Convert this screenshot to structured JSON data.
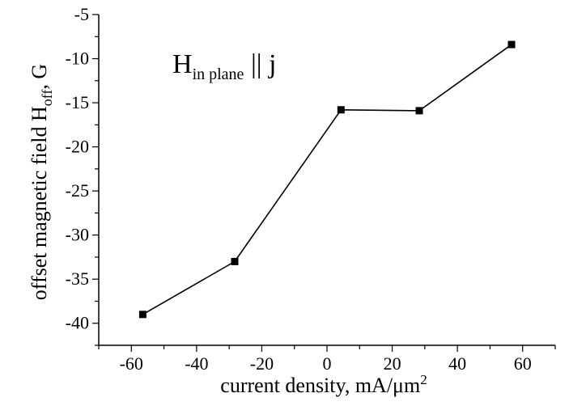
{
  "chart_data": {
    "type": "line",
    "title": "",
    "xlabel": "current density, mA/μm",
    "xlabel_superscript": "2",
    "ylabel_main": "offset magnetic field H",
    "ylabel_subscript": "off",
    "ylabel_tail": ", G",
    "xlim": [
      -70,
      70
    ],
    "ylim": [
      -42.5,
      -5
    ],
    "xticks": [
      -60,
      -40,
      -20,
      0,
      20,
      40,
      60
    ],
    "yticks": [
      -40,
      -35,
      -30,
      -25,
      -20,
      -15,
      -10,
      -5
    ],
    "grid": false,
    "legend": "none",
    "series": [
      {
        "x": [
          -56.5,
          -28.3,
          4.3,
          28.3,
          56.6
        ],
        "y": [
          -39.0,
          -33.0,
          -15.8,
          -15.9,
          -8.4
        ]
      }
    ],
    "annotation": {
      "main": "H",
      "subscript": "in plane",
      "tail": " || j"
    }
  }
}
